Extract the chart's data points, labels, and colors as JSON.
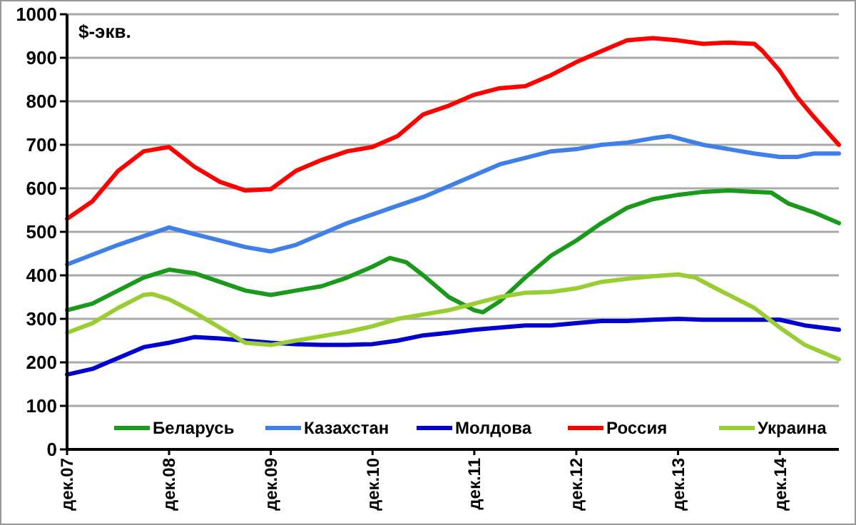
{
  "chart_data": {
    "type": "line",
    "ylabel": "$-экв.",
    "ylim": [
      0,
      1000
    ],
    "yticks": [
      0,
      100,
      200,
      300,
      400,
      500,
      600,
      700,
      800,
      900,
      1000
    ],
    "xlim": [
      "2007-12",
      "2015-07"
    ],
    "xticks": [
      {
        "value": "2007-12",
        "label": "дек.07"
      },
      {
        "value": "2008-12",
        "label": "дек.08"
      },
      {
        "value": "2009-12",
        "label": "дек.09"
      },
      {
        "value": "2010-12",
        "label": "дек.10"
      },
      {
        "value": "2011-12",
        "label": "дек.11"
      },
      {
        "value": "2012-12",
        "label": "дек.12"
      },
      {
        "value": "2013-12",
        "label": "дек.13"
      },
      {
        "value": "2014-12",
        "label": "дек.14"
      }
    ],
    "grid": "y",
    "legend": "bottom",
    "marker": "none",
    "line_style": "solid",
    "series": [
      {
        "name": "Беларусь",
        "color": "#1a9a1a",
        "x": [
          "2007-12",
          "2008-03",
          "2008-06",
          "2008-09",
          "2008-12",
          "2009-03",
          "2009-06",
          "2009-09",
          "2009-12",
          "2010-03",
          "2010-06",
          "2010-09",
          "2010-12",
          "2011-02",
          "2011-04",
          "2011-06",
          "2011-09",
          "2011-12",
          "2012-01",
          "2012-03",
          "2012-06",
          "2012-09",
          "2012-12",
          "2013-03",
          "2013-06",
          "2013-09",
          "2013-12",
          "2014-03",
          "2014-06",
          "2014-09",
          "2014-11",
          "2015-01",
          "2015-04",
          "2015-07"
        ],
        "values": [
          320,
          335,
          365,
          395,
          413,
          405,
          385,
          365,
          355,
          365,
          375,
          395,
          420,
          440,
          430,
          400,
          350,
          320,
          315,
          340,
          395,
          445,
          480,
          520,
          555,
          575,
          585,
          592,
          595,
          592,
          590,
          565,
          545,
          520
        ]
      },
      {
        "name": "Казахстан",
        "color": "#3f7fe8",
        "x": [
          "2007-12",
          "2008-06",
          "2008-12",
          "2009-03",
          "2009-06",
          "2009-09",
          "2009-12",
          "2010-03",
          "2010-06",
          "2010-09",
          "2010-12",
          "2011-03",
          "2011-06",
          "2011-09",
          "2011-12",
          "2012-03",
          "2012-06",
          "2012-09",
          "2012-12",
          "2013-03",
          "2013-06",
          "2013-09",
          "2013-11",
          "2013-12",
          "2014-03",
          "2014-06",
          "2014-09",
          "2014-12",
          "2015-02",
          "2015-04",
          "2015-07"
        ],
        "values": [
          425,
          470,
          510,
          495,
          480,
          465,
          455,
          470,
          495,
          520,
          540,
          560,
          580,
          605,
          630,
          655,
          670,
          685,
          690,
          700,
          705,
          715,
          720,
          715,
          700,
          690,
          680,
          672,
          672,
          680,
          680
        ]
      },
      {
        "name": "Молдова",
        "color": "#0000d0",
        "x": [
          "2007-12",
          "2008-03",
          "2008-06",
          "2008-09",
          "2008-12",
          "2009-03",
          "2009-06",
          "2009-09",
          "2009-12",
          "2010-03",
          "2010-06",
          "2010-09",
          "2010-12",
          "2011-03",
          "2011-06",
          "2011-09",
          "2011-12",
          "2012-03",
          "2012-06",
          "2012-09",
          "2012-12",
          "2013-03",
          "2013-06",
          "2013-09",
          "2013-12",
          "2014-03",
          "2014-06",
          "2014-09",
          "2014-12",
          "2015-03",
          "2015-07"
        ],
        "values": [
          172,
          185,
          210,
          235,
          245,
          258,
          255,
          250,
          245,
          242,
          240,
          240,
          242,
          250,
          262,
          268,
          275,
          280,
          285,
          285,
          290,
          295,
          295,
          298,
          300,
          298,
          298,
          298,
          298,
          285,
          275
        ]
      },
      {
        "name": "Россия",
        "color": "#ff0000",
        "x": [
          "2007-12",
          "2008-03",
          "2008-06",
          "2008-09",
          "2008-12",
          "2009-03",
          "2009-06",
          "2009-09",
          "2009-12",
          "2010-03",
          "2010-06",
          "2010-09",
          "2010-12",
          "2011-03",
          "2011-06",
          "2011-09",
          "2011-12",
          "2012-03",
          "2012-06",
          "2012-09",
          "2012-12",
          "2013-03",
          "2013-06",
          "2013-09",
          "2013-12",
          "2014-03",
          "2014-06",
          "2014-09",
          "2014-10",
          "2014-12",
          "2015-02",
          "2015-04",
          "2015-07"
        ],
        "values": [
          530,
          570,
          640,
          685,
          695,
          650,
          615,
          595,
          598,
          640,
          665,
          685,
          695,
          720,
          770,
          790,
          815,
          830,
          835,
          860,
          890,
          915,
          940,
          945,
          940,
          932,
          935,
          932,
          915,
          870,
          810,
          765,
          700
        ]
      },
      {
        "name": "Украина",
        "color": "#9acd32",
        "x": [
          "2007-12",
          "2008-03",
          "2008-06",
          "2008-09",
          "2008-10",
          "2008-12",
          "2009-03",
          "2009-06",
          "2009-09",
          "2009-12",
          "2010-03",
          "2010-06",
          "2010-09",
          "2010-12",
          "2011-03",
          "2011-06",
          "2011-09",
          "2011-12",
          "2012-03",
          "2012-06",
          "2012-09",
          "2012-12",
          "2013-03",
          "2013-06",
          "2013-09",
          "2013-12",
          "2014-02",
          "2014-04",
          "2014-06",
          "2014-09",
          "2014-12",
          "2015-03",
          "2015-07"
        ],
        "values": [
          268,
          290,
          325,
          355,
          357,
          345,
          315,
          280,
          245,
          240,
          250,
          260,
          270,
          283,
          300,
          310,
          320,
          335,
          350,
          360,
          362,
          370,
          385,
          392,
          398,
          402,
          395,
          375,
          355,
          325,
          280,
          240,
          207
        ]
      }
    ]
  }
}
